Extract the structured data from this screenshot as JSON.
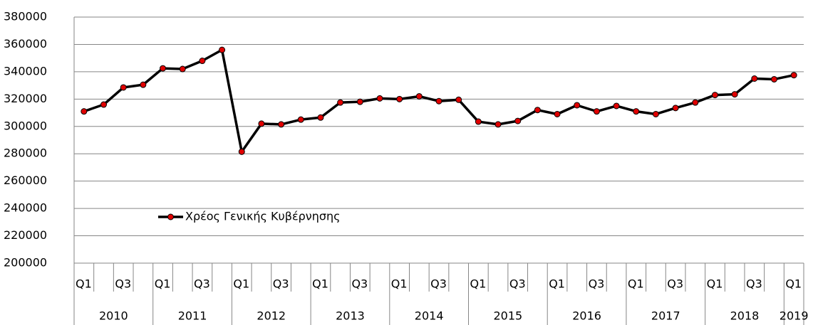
{
  "chart_data": {
    "type": "line",
    "categories": [
      "Q1",
      null,
      "Q3",
      null,
      "Q1",
      null,
      "Q3",
      null,
      "Q1",
      null,
      "Q3",
      null,
      "Q1",
      null,
      "Q3",
      null,
      "Q1",
      null,
      "Q3",
      null,
      "Q1",
      null,
      "Q3",
      null,
      "Q1",
      null,
      "Q3",
      null,
      "Q1",
      null,
      "Q3",
      null,
      "Q1",
      null,
      "Q3",
      null,
      "Q1"
    ],
    "category_groups": [
      "2010",
      "2011",
      "2012",
      "2013",
      "2014",
      "2015",
      "2016",
      "2017",
      "2018",
      "2019"
    ],
    "series": [
      {
        "name": "Χρέος Γενικής Κυβέρνησης",
        "color": "#000000",
        "marker_color": "#e00000",
        "values": [
          311000,
          316000,
          328500,
          330500,
          342500,
          342000,
          348000,
          356000,
          281500,
          302000,
          301500,
          305000,
          306500,
          317500,
          318000,
          320500,
          320000,
          322000,
          318500,
          319500,
          303500,
          301500,
          304000,
          312000,
          309000,
          315500,
          311000,
          315000,
          311000,
          309000,
          313500,
          317500,
          323000,
          323500,
          335000,
          334500,
          337500
        ]
      }
    ],
    "ylim": [
      200000,
      380000
    ],
    "yticks": [
      200000,
      220000,
      240000,
      260000,
      280000,
      300000,
      320000,
      340000,
      360000,
      380000
    ],
    "grid": true,
    "legend_position": "lower-left"
  }
}
